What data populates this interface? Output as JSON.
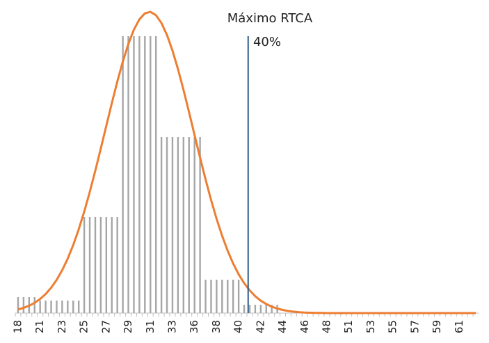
{
  "chart_data": {
    "type": "histogram",
    "categories": [
      "18",
      null,
      null,
      null,
      "21",
      null,
      null,
      null,
      "23",
      null,
      null,
      null,
      "25",
      null,
      null,
      null,
      "27",
      null,
      null,
      null,
      "29",
      null,
      null,
      null,
      "31",
      null,
      null,
      null,
      "33",
      null,
      null,
      null,
      "36",
      null,
      null,
      null,
      "38",
      null,
      null,
      null,
      "40",
      null,
      null,
      null,
      "42",
      null,
      null,
      null,
      "44",
      null,
      null,
      null,
      "46",
      null,
      null,
      null,
      "48",
      null,
      null,
      null,
      "51",
      null,
      null,
      null,
      "53",
      null,
      null,
      null,
      "55",
      null,
      null,
      null,
      "57",
      null,
      null,
      null,
      "59",
      null,
      null,
      null,
      "61",
      null,
      null,
      null
    ],
    "series": [
      {
        "kind": "bar",
        "color": "#a6a6a6",
        "values": [
          23,
          23,
          23,
          23,
          18,
          18,
          18,
          18,
          18,
          18,
          18,
          18,
          138,
          138,
          138,
          138,
          138,
          138,
          138,
          398,
          398,
          398,
          398,
          398,
          398,
          398,
          253,
          253,
          253,
          253,
          253,
          253,
          253,
          253,
          48,
          48,
          48,
          48,
          48,
          48,
          48,
          12,
          12,
          12,
          12,
          12,
          12,
          12,
          0,
          0,
          0,
          0,
          0,
          0,
          0,
          0,
          0,
          0,
          0,
          0,
          0,
          0,
          0,
          0,
          0,
          0,
          0,
          0,
          0,
          0,
          0,
          0,
          0,
          0,
          0,
          0,
          0,
          0,
          0,
          0,
          0,
          0,
          0,
          0
        ]
      },
      {
        "kind": "line",
        "color": "#ed7d31",
        "values": [
          5.2,
          7.5,
          10.6,
          14.7,
          20.3,
          27.4,
          36.5,
          47.7,
          61.6,
          78.2,
          97.8,
          120.4,
          145.9,
          174.1,
          204.5,
          236.5,
          269.2,
          301.7,
          332.9,
          361.7,
          386.8,
          407.3,
          422.2,
          430.8,
          432.9,
          428.2,
          416.9,
          399.7,
          377.2,
          350.6,
          320.7,
          288.8,
          256.0,
          223.5,
          192.1,
          162.5,
          135.4,
          111.1,
          89.7,
          71.2,
          55.7,
          43.0,
          32.6,
          24.3,
          17.8,
          13.0,
          9.2,
          6.5,
          4.5,
          3.0,
          2.0,
          1.3,
          0.8,
          0.5,
          0.3,
          0.2,
          0,
          0,
          0,
          0,
          0,
          0,
          0,
          0,
          0,
          0,
          0,
          0,
          0,
          0,
          0,
          0,
          0,
          0,
          0,
          0,
          0,
          0,
          0,
          0,
          0,
          0,
          0,
          0
        ]
      }
    ],
    "ylim": [
      0,
      430
    ],
    "xlim": [
      18,
      61
    ],
    "reference_line": {
      "x": 40,
      "color": "#2e5b8c",
      "title": "Máximo RTCA",
      "label": "40%"
    }
  }
}
